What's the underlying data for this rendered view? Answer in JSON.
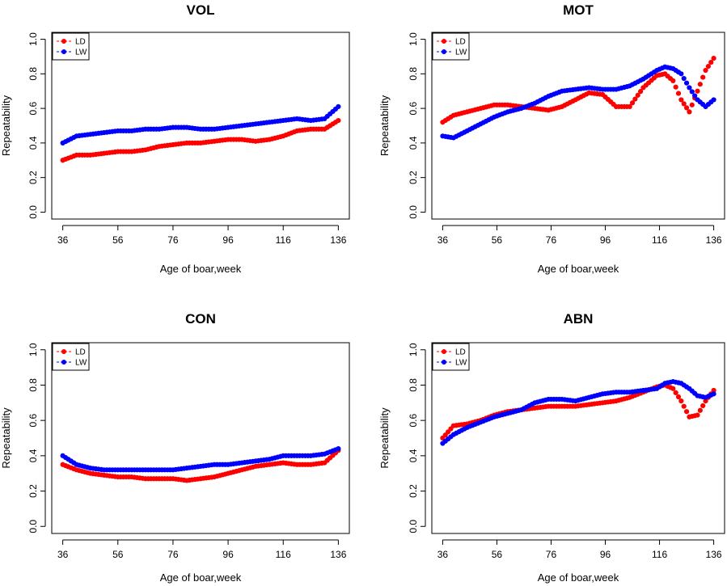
{
  "figure": {
    "panels": [
      "VOL",
      "MOT",
      "CON",
      "ABN"
    ]
  },
  "colors": {
    "LD": "#ff0000",
    "LW": "#0000ff"
  },
  "chart_data": [
    {
      "type": "line",
      "title": "VOL",
      "xlabel": "Age of boar,week",
      "ylabel": "Repeatability",
      "x_ticks": [
        "36",
        "56",
        "76",
        "96",
        "116",
        "136"
      ],
      "y_ticks": [
        "0.0",
        "0.2",
        "0.4",
        "0.6",
        "0.8",
        "1.0"
      ],
      "xlim": [
        36,
        136
      ],
      "ylim": [
        0,
        1
      ],
      "legend": {
        "position": "top-left",
        "entries": [
          "LD",
          "LW"
        ]
      },
      "x": [
        36,
        41,
        46,
        51,
        56,
        61,
        66,
        71,
        76,
        81,
        86,
        91,
        96,
        101,
        106,
        111,
        116,
        121,
        126,
        131,
        136
      ],
      "series": [
        {
          "name": "LD",
          "color": "#ff0000",
          "values": [
            0.3,
            0.33,
            0.33,
            0.34,
            0.35,
            0.35,
            0.36,
            0.38,
            0.39,
            0.4,
            0.4,
            0.41,
            0.42,
            0.42,
            0.41,
            0.42,
            0.44,
            0.47,
            0.48,
            0.48,
            0.53
          ]
        },
        {
          "name": "LW",
          "color": "#0000ff",
          "values": [
            0.4,
            0.44,
            0.45,
            0.46,
            0.47,
            0.47,
            0.48,
            0.48,
            0.49,
            0.49,
            0.48,
            0.48,
            0.49,
            0.5,
            0.51,
            0.52,
            0.53,
            0.54,
            0.53,
            0.54,
            0.61
          ]
        }
      ]
    },
    {
      "type": "line",
      "title": "MOT",
      "xlabel": "Age of boar,week",
      "ylabel": "Repeatability",
      "x_ticks": [
        "36",
        "56",
        "76",
        "96",
        "116",
        "136"
      ],
      "y_ticks": [
        "0.0",
        "0.2",
        "0.4",
        "0.6",
        "0.8",
        "1.0"
      ],
      "xlim": [
        36,
        136
      ],
      "ylim": [
        0,
        1
      ],
      "legend": {
        "position": "top-left",
        "entries": [
          "LD",
          "LW"
        ]
      },
      "x": [
        36,
        40,
        45,
        50,
        55,
        60,
        65,
        70,
        75,
        80,
        85,
        90,
        95,
        100,
        105,
        110,
        115,
        118,
        121,
        124,
        127,
        130,
        133,
        136
      ],
      "series": [
        {
          "name": "LD",
          "color": "#ff0000",
          "values": [
            0.52,
            0.56,
            0.58,
            0.6,
            0.62,
            0.62,
            0.61,
            0.6,
            0.59,
            0.61,
            0.65,
            0.69,
            0.68,
            0.61,
            0.61,
            0.72,
            0.79,
            0.8,
            0.76,
            0.65,
            0.58,
            0.7,
            0.82,
            0.89
          ]
        },
        {
          "name": "LW",
          "color": "#0000ff",
          "values": [
            0.44,
            0.43,
            0.47,
            0.51,
            0.55,
            0.58,
            0.6,
            0.63,
            0.67,
            0.7,
            0.71,
            0.72,
            0.71,
            0.71,
            0.73,
            0.77,
            0.82,
            0.84,
            0.83,
            0.8,
            0.72,
            0.65,
            0.61,
            0.65
          ]
        }
      ]
    },
    {
      "type": "line",
      "title": "CON",
      "xlabel": "Age of boar,week",
      "ylabel": "Repeatability",
      "x_ticks": [
        "36",
        "56",
        "76",
        "96",
        "116",
        "136"
      ],
      "y_ticks": [
        "0.0",
        "0.2",
        "0.4",
        "0.6",
        "0.8",
        "1.0"
      ],
      "xlim": [
        36,
        136
      ],
      "ylim": [
        0,
        1
      ],
      "legend": {
        "position": "top-left",
        "entries": [
          "LD",
          "LW"
        ]
      },
      "x": [
        36,
        41,
        46,
        51,
        56,
        61,
        66,
        71,
        76,
        81,
        86,
        91,
        96,
        101,
        106,
        111,
        116,
        121,
        126,
        131,
        136
      ],
      "series": [
        {
          "name": "LD",
          "color": "#ff0000",
          "values": [
            0.35,
            0.32,
            0.3,
            0.29,
            0.28,
            0.28,
            0.27,
            0.27,
            0.27,
            0.26,
            0.27,
            0.28,
            0.3,
            0.32,
            0.34,
            0.35,
            0.36,
            0.35,
            0.35,
            0.36,
            0.43
          ]
        },
        {
          "name": "LW",
          "color": "#0000ff",
          "values": [
            0.4,
            0.35,
            0.33,
            0.32,
            0.32,
            0.32,
            0.32,
            0.32,
            0.32,
            0.33,
            0.34,
            0.35,
            0.35,
            0.36,
            0.37,
            0.38,
            0.4,
            0.4,
            0.4,
            0.41,
            0.44
          ]
        }
      ]
    },
    {
      "type": "line",
      "title": "ABN",
      "xlabel": "Age of boar,week",
      "ylabel": "Repeatability",
      "x_ticks": [
        "36",
        "56",
        "76",
        "96",
        "116",
        "136"
      ],
      "y_ticks": [
        "0.0",
        "0.2",
        "0.4",
        "0.6",
        "0.8",
        "1.0"
      ],
      "xlim": [
        36,
        136
      ],
      "ylim": [
        0,
        1
      ],
      "legend": {
        "position": "top-left",
        "entries": [
          "LD",
          "LW"
        ]
      },
      "x": [
        36,
        40,
        45,
        50,
        55,
        60,
        65,
        70,
        75,
        80,
        85,
        90,
        95,
        100,
        105,
        110,
        115,
        118,
        121,
        124,
        127,
        130,
        133,
        136
      ],
      "series": [
        {
          "name": "LD",
          "color": "#ff0000",
          "values": [
            0.5,
            0.57,
            0.58,
            0.6,
            0.63,
            0.65,
            0.66,
            0.67,
            0.68,
            0.68,
            0.68,
            0.69,
            0.7,
            0.71,
            0.73,
            0.76,
            0.79,
            0.8,
            0.78,
            0.71,
            0.62,
            0.63,
            0.71,
            0.77
          ]
        },
        {
          "name": "LW",
          "color": "#0000ff",
          "values": [
            0.47,
            0.52,
            0.56,
            0.59,
            0.62,
            0.64,
            0.66,
            0.7,
            0.72,
            0.72,
            0.71,
            0.73,
            0.75,
            0.76,
            0.76,
            0.77,
            0.78,
            0.81,
            0.82,
            0.81,
            0.78,
            0.74,
            0.73,
            0.75
          ]
        }
      ]
    }
  ]
}
